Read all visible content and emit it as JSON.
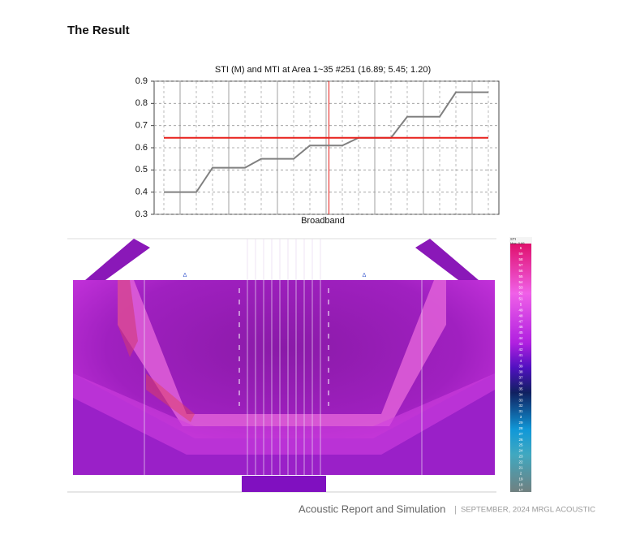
{
  "header": {
    "title": "The Result"
  },
  "chart_data": {
    "type": "line",
    "title": "STI (M) and MTI at Area 1~35 #251  (16.89; 5.45; 1.20)",
    "x_label": "Broadband",
    "categories": [
      null,
      null,
      null,
      null,
      null,
      null,
      null,
      null,
      null,
      null,
      null,
      null,
      null,
      null,
      null,
      null,
      null,
      null,
      null,
      null,
      null
    ],
    "series": [
      {
        "color": "#808080",
        "values": [
          0.4,
          0.4,
          0.4,
          0.51,
          0.51,
          0.51,
          0.55,
          0.55,
          0.55,
          0.61,
          0.61,
          0.61,
          0.645,
          0.645,
          0.645,
          0.74,
          0.74,
          0.74,
          0.85,
          0.85,
          0.85
        ]
      },
      {
        "color": "#e8201c",
        "values": [
          0.645,
          0.645,
          0.645,
          0.645,
          0.645,
          0.645,
          0.645,
          0.645,
          0.645,
          0.645,
          0.645,
          0.645,
          0.645,
          0.645,
          0.645,
          0.645,
          0.645,
          0.645,
          0.645,
          0.645,
          0.645
        ]
      }
    ],
    "ylim": [
      0.3,
      0.9
    ],
    "yticks": [
      0.3,
      0.4,
      0.5,
      0.6,
      0.7,
      0.8,
      0.9
    ],
    "grid": true
  },
  "color_scale": {
    "title": "STI",
    "max": "Max: 0.66",
    "labels": [
      "6",
      "59",
      "58",
      "57",
      "56",
      "55",
      "54",
      "53",
      "52",
      "51",
      "5",
      "49",
      "48",
      "47",
      "46",
      "45",
      "44",
      "43",
      "42",
      "41",
      "4",
      "39",
      "38",
      "37",
      "36",
      "35",
      "34",
      "33",
      "32",
      "31",
      "3",
      "29",
      "28",
      "27",
      "26",
      "25",
      "24",
      "23",
      "22",
      "21",
      "2",
      "19",
      "18",
      "17"
    ]
  },
  "footer": {
    "title": "Acoustic Report and Simulation",
    "separator": "|",
    "subtitle": "SEPTEMBER, 2024 MRGL ACOUSTIC"
  }
}
